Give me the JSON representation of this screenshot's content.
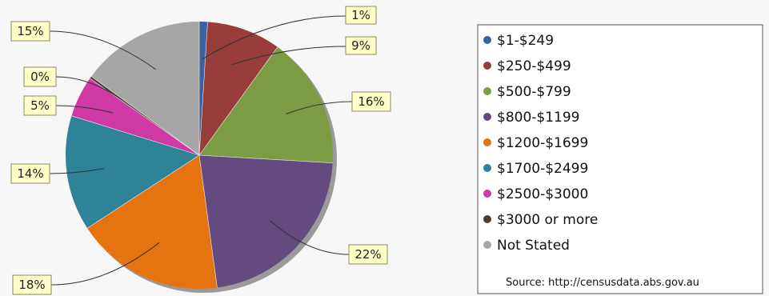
{
  "chart_data": {
    "type": "pie",
    "title": "",
    "slices": [
      {
        "label": "$1-$249",
        "value": 1,
        "display": "1%",
        "color": "#3b62a0"
      },
      {
        "label": "$250-$499",
        "value": 9,
        "display": "9%",
        "color": "#993d3a"
      },
      {
        "label": "$500-$799",
        "value": 16,
        "display": "16%",
        "color": "#7d9b43"
      },
      {
        "label": "$800-$1199",
        "value": 22,
        "display": "22%",
        "color": "#634a7f"
      },
      {
        "label": "$1200-$1699",
        "value": 18,
        "display": "18%",
        "color": "#e57410"
      },
      {
        "label": "$1700-$2499",
        "value": 14,
        "display": "14%",
        "color": "#2e8399"
      },
      {
        "label": "$2500-$3000",
        "value": 5,
        "display": "5%",
        "color": "#cf3aa5"
      },
      {
        "label": "$3000 or more",
        "value": 0.3,
        "display": "0%",
        "color": "#4d3f2f"
      },
      {
        "label": "Not Stated",
        "value": 15,
        "display": "15%",
        "color": "#a6a6a6"
      }
    ],
    "legend": {
      "position": "right",
      "source": "Source: http://censusdata.abs.gov.au"
    }
  }
}
